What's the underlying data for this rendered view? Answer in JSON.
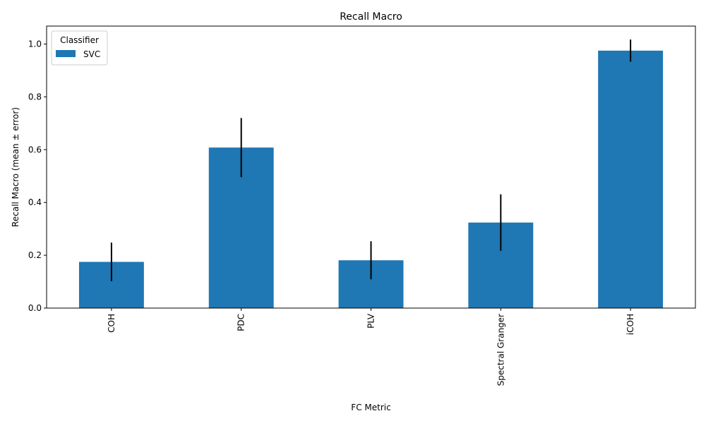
{
  "chart_data": {
    "type": "bar",
    "title": "Recall Macro",
    "xlabel": "FC Metric",
    "ylabel": "Recall Macro (mean ± error)",
    "categories": [
      "COH",
      "PDC",
      "PLV",
      "Spectral Granger",
      "iCOH"
    ],
    "series": [
      {
        "name": "SVC",
        "values": [
          0.175,
          0.608,
          0.181,
          0.324,
          0.975
        ],
        "errors": [
          0.073,
          0.112,
          0.072,
          0.107,
          0.042
        ],
        "color": "#1f77b4"
      }
    ],
    "ylim": [
      0,
      1.068
    ],
    "yticks": [
      0.0,
      0.2,
      0.4,
      0.6,
      0.8,
      1.0
    ],
    "ytick_labels": [
      "0.0",
      "0.2",
      "0.4",
      "0.6",
      "0.8",
      "1.0"
    ],
    "grid": false,
    "legend": {
      "title": "Classifier",
      "placement": "top-left"
    },
    "error_bar_color": "#000000"
  }
}
